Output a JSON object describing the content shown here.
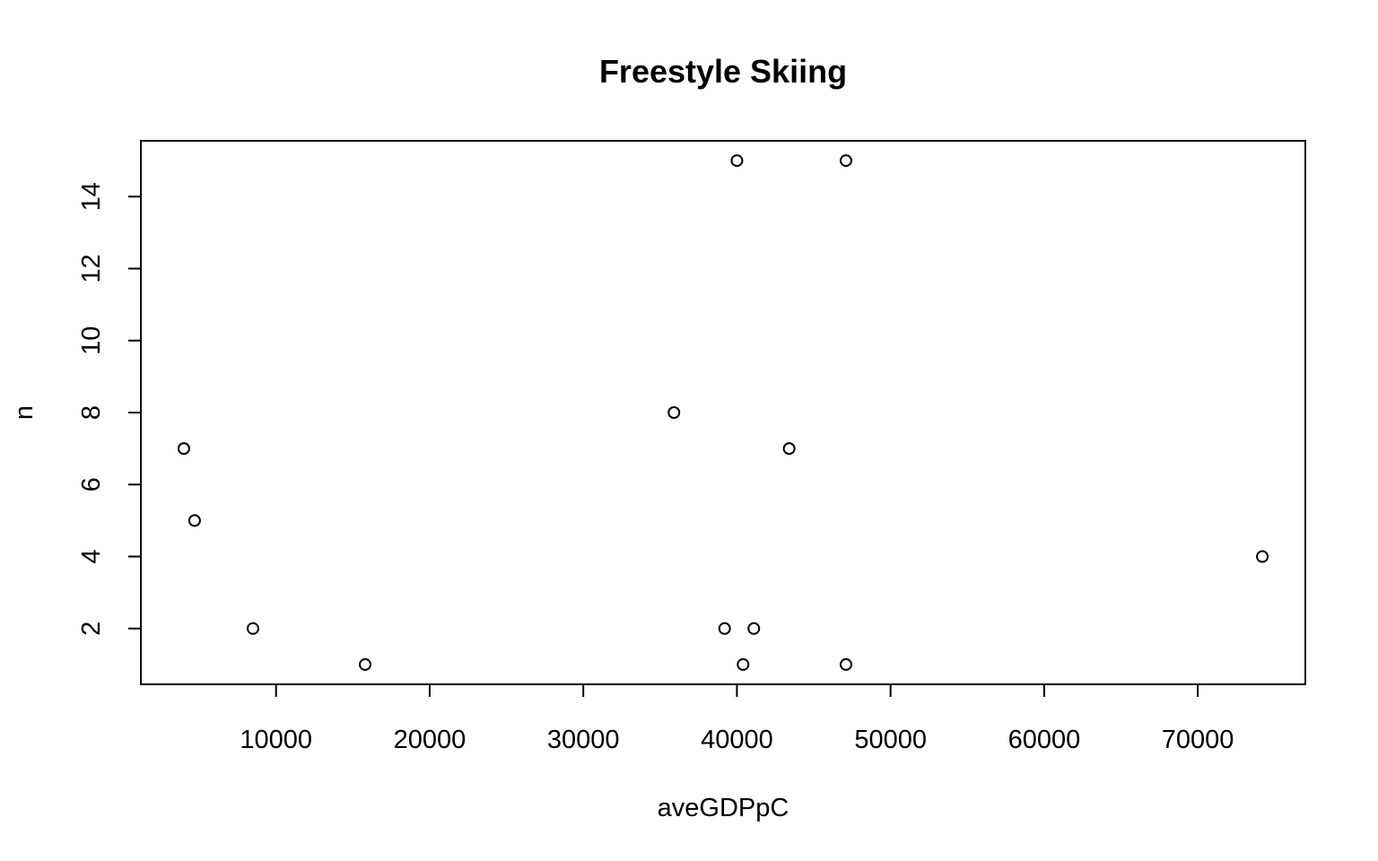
{
  "chart_data": {
    "type": "scatter",
    "title": "Freestyle Skiing",
    "xlabel": "aveGDPpC",
    "ylabel": "n",
    "xlim": [
      1200,
      77000
    ],
    "ylim": [
      0.45,
      15.55
    ],
    "xticks": [
      10000,
      20000,
      30000,
      40000,
      50000,
      60000,
      70000
    ],
    "yticks": [
      2,
      4,
      6,
      8,
      10,
      12,
      14
    ],
    "grid": false,
    "legend": "none",
    "points": [
      {
        "x": 4000,
        "y": 7
      },
      {
        "x": 4700,
        "y": 5
      },
      {
        "x": 8500,
        "y": 2
      },
      {
        "x": 15800,
        "y": 1
      },
      {
        "x": 35900,
        "y": 8
      },
      {
        "x": 39200,
        "y": 2
      },
      {
        "x": 40000,
        "y": 15
      },
      {
        "x": 40400,
        "y": 1
      },
      {
        "x": 41100,
        "y": 2
      },
      {
        "x": 43400,
        "y": 7
      },
      {
        "x": 47100,
        "y": 15
      },
      {
        "x": 47100,
        "y": 1
      },
      {
        "x": 74200,
        "y": 4
      }
    ]
  }
}
